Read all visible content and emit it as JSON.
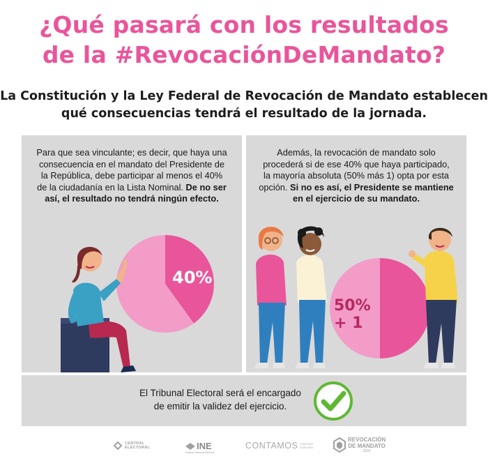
{
  "title": {
    "line1": "¿Qué pasará con los resultados",
    "line2": "de la #RevocaciónDeMandato?"
  },
  "subtitle": {
    "line1": "La Constitución y la Ley Federal de Revocación de Mandato establecen",
    "line2": "qué consecuencias tendrá el resultado de la jornada."
  },
  "left_panel": {
    "text": "Para que sea vinculante; es decir, que haya una consecuencia en el mandato del Presidente de la República, debe participar al menos el 40% de la ciudadanía en la Lista Nominal.",
    "bold_text": "De no ser así, el resultado no tendrá ningún efecto.",
    "pie_label": "40%",
    "pie_value": 40
  },
  "right_panel": {
    "text": "Además, la revocación de mandato solo procederá si de ese 40% que haya participado, la mayoría absoluta (50% más 1) opta por esta opción.",
    "bold_text": "Si no es así, el Presidente se mantiene en el ejercicio de su mandato.",
    "pie_label_line1": "50%",
    "pie_label_line2": "+ 1",
    "pie_value": 50
  },
  "bottom_panel": {
    "line1": "El Tribunal Electoral será el encargado",
    "line2": "de emitir la validez del ejercicio."
  },
  "footer": {
    "logo1_line1": "CENTRAL",
    "logo1_line2": "ELECTORAL",
    "logo2": "INE",
    "logo2_sub": "Instituto Nacional Electoral",
    "logo3": "CONTAMOS",
    "logo3_sub1": "CONTIGO",
    "logo3_sub2": "CONTIGO",
    "logo4_line1": "REVOCACIÓN",
    "logo4_line2": "DE MANDATO",
    "logo4_line3": "2022"
  },
  "colors": {
    "accent": "#e9559a",
    "pie_light": "#f29cc7",
    "pie_dark": "#e9559a",
    "panel_bg": "#d9d9d9",
    "check_green": "#5fb833"
  },
  "icons": [
    "check-icon",
    "central-electoral-logo",
    "ine-logo",
    "contamos-logo",
    "revocacion-logo"
  ]
}
